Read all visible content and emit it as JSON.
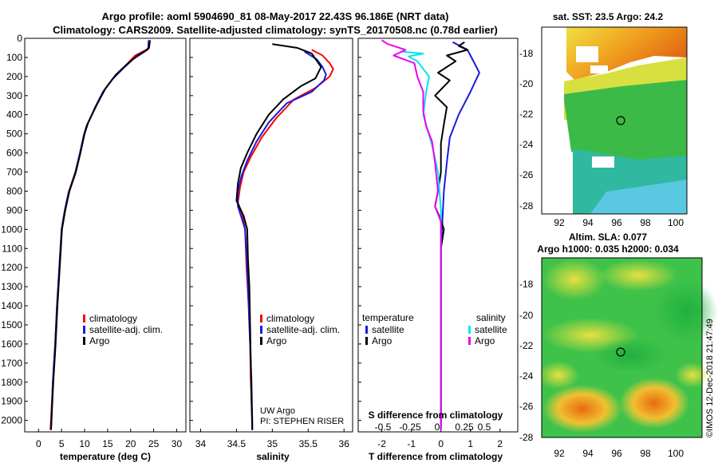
{
  "header": {
    "line1": "Argo profile: aoml 5904690_81 08-May-2017 22.43S 96.186E (NRT data)",
    "line2": "Climatology: CARS2009. Satellite-adjusted climatology: synTS_20170508.nc (0.78d earlier)"
  },
  "colors": {
    "climatology": "#ff0000",
    "satellite": "#1a1adc",
    "argo": "#000000",
    "sat_salinity": "#00e5ee",
    "argo_salinity": "#ee00ee"
  },
  "depth_axis": {
    "ticks": [
      0,
      100,
      200,
      300,
      400,
      500,
      600,
      700,
      800,
      900,
      1000,
      1100,
      1200,
      1300,
      1400,
      1500,
      1600,
      1700,
      1800,
      1900,
      2000
    ],
    "range": [
      0,
      2060
    ]
  },
  "chart_data": [
    {
      "type": "line",
      "id": "temperature",
      "xlabel": "temperature (deg C)",
      "xticks": [
        0,
        5,
        10,
        15,
        20,
        25,
        30
      ],
      "xlim": [
        -3,
        32
      ],
      "legend": [
        "climatology",
        "satellite-adj. clim.",
        "Argo"
      ],
      "series": [
        {
          "name": "climatology",
          "color": "#ff0000",
          "points": [
            [
              24.0,
              10
            ],
            [
              23.9,
              50
            ],
            [
              23.4,
              60
            ],
            [
              21.0,
              90
            ],
            [
              18.6,
              150
            ],
            [
              16.5,
              200
            ],
            [
              14.3,
              270
            ],
            [
              12.6,
              350
            ],
            [
              11.6,
              400
            ],
            [
              10.6,
              450
            ],
            [
              9.9,
              500
            ],
            [
              9.0,
              600
            ],
            [
              8.0,
              700
            ],
            [
              6.6,
              800
            ],
            [
              5.7,
              900
            ],
            [
              5.0,
              1000
            ],
            [
              4.5,
              1200
            ],
            [
              4.0,
              1400
            ],
            [
              3.6,
              1600
            ],
            [
              3.1,
              1800
            ],
            [
              2.7,
              2000
            ],
            [
              2.6,
              2050
            ]
          ]
        },
        {
          "name": "satellite-adj. clim.",
          "color": "#1a1adc",
          "points": [
            [
              23.9,
              10
            ],
            [
              23.8,
              55
            ],
            [
              23.0,
              70
            ],
            [
              20.5,
              110
            ],
            [
              18.3,
              160
            ],
            [
              16.2,
              210
            ],
            [
              14.0,
              280
            ],
            [
              12.3,
              360
            ],
            [
              11.4,
              410
            ],
            [
              10.4,
              460
            ],
            [
              9.8,
              510
            ],
            [
              8.9,
              610
            ],
            [
              7.9,
              710
            ],
            [
              6.5,
              810
            ],
            [
              5.7,
              900
            ],
            [
              5.0,
              1000
            ],
            [
              4.5,
              1200
            ],
            [
              4.0,
              1400
            ],
            [
              3.6,
              1600
            ],
            [
              3.1,
              1800
            ],
            [
              2.8,
              2000
            ],
            [
              2.7,
              2050
            ]
          ]
        },
        {
          "name": "Argo",
          "color": "#000000",
          "points": [
            [
              24.2,
              10
            ],
            [
              24.0,
              50
            ],
            [
              23.6,
              60
            ],
            [
              21.5,
              90
            ],
            [
              19.0,
              140
            ],
            [
              16.8,
              190
            ],
            [
              14.6,
              260
            ],
            [
              12.8,
              340
            ],
            [
              11.8,
              390
            ],
            [
              10.8,
              440
            ],
            [
              10.0,
              500
            ],
            [
              9.1,
              600
            ],
            [
              8.1,
              700
            ],
            [
              6.7,
              800
            ],
            [
              5.8,
              900
            ],
            [
              5.1,
              1000
            ],
            [
              4.6,
              1200
            ],
            [
              4.1,
              1400
            ],
            [
              3.7,
              1600
            ],
            [
              3.2,
              1800
            ],
            [
              2.8,
              2000
            ],
            [
              2.7,
              2050
            ]
          ]
        }
      ]
    },
    {
      "type": "line",
      "id": "salinity",
      "xlabel": "salinity",
      "xticks": [
        34,
        34.5,
        35,
        35.5,
        36
      ],
      "xtick_labels": [
        "34",
        "34.5",
        "35",
        "35.5",
        "36"
      ],
      "xlim": [
        33.85,
        36.12
      ],
      "legend": [
        "climatology",
        "satellite-adj. clim.",
        "Argo"
      ],
      "annotation": [
        "UW Argo",
        "PI: STEPHEN RISER"
      ],
      "series": [
        {
          "name": "climatology",
          "color": "#ff0000",
          "points": [
            [
              35.55,
              60
            ],
            [
              35.7,
              90
            ],
            [
              35.8,
              130
            ],
            [
              35.85,
              160
            ],
            [
              35.8,
              200
            ],
            [
              35.6,
              260
            ],
            [
              35.3,
              320
            ],
            [
              35.05,
              420
            ],
            [
              34.85,
              520
            ],
            [
              34.7,
              620
            ],
            [
              34.6,
              700
            ],
            [
              34.55,
              780
            ],
            [
              34.52,
              860
            ],
            [
              34.58,
              920
            ],
            [
              34.62,
              1000
            ],
            [
              34.64,
              1200
            ],
            [
              34.67,
              1400
            ],
            [
              34.69,
              1600
            ],
            [
              34.7,
              1800
            ],
            [
              34.72,
              2000
            ],
            [
              34.72,
              2050
            ]
          ]
        },
        {
          "name": "satellite-adj. clim.",
          "color": "#1a1adc",
          "points": [
            [
              35.45,
              70
            ],
            [
              35.62,
              110
            ],
            [
              35.7,
              150
            ],
            [
              35.75,
              190
            ],
            [
              35.72,
              220
            ],
            [
              35.55,
              280
            ],
            [
              35.2,
              340
            ],
            [
              34.95,
              440
            ],
            [
              34.78,
              540
            ],
            [
              34.65,
              640
            ],
            [
              34.57,
              720
            ],
            [
              34.52,
              800
            ],
            [
              34.52,
              880
            ],
            [
              34.58,
              950
            ],
            [
              34.62,
              1000
            ],
            [
              34.65,
              1200
            ],
            [
              34.67,
              1400
            ],
            [
              34.69,
              1600
            ],
            [
              34.71,
              1800
            ],
            [
              34.72,
              2000
            ],
            [
              34.72,
              2050
            ]
          ]
        },
        {
          "name": "Argo",
          "color": "#000000",
          "points": [
            [
              35.0,
              30
            ],
            [
              35.35,
              50
            ],
            [
              35.55,
              80
            ],
            [
              35.68,
              150
            ],
            [
              35.6,
              210
            ],
            [
              35.4,
              250
            ],
            [
              35.15,
              320
            ],
            [
              34.95,
              400
            ],
            [
              34.78,
              500
            ],
            [
              34.65,
              600
            ],
            [
              34.56,
              680
            ],
            [
              34.52,
              760
            ],
            [
              34.5,
              850
            ],
            [
              34.6,
              930
            ],
            [
              34.65,
              1000
            ],
            [
              34.66,
              1150
            ],
            [
              34.68,
              1300
            ],
            [
              34.69,
              1500
            ],
            [
              34.7,
              1700
            ],
            [
              34.71,
              1900
            ],
            [
              34.72,
              2050
            ]
          ]
        }
      ]
    },
    {
      "type": "line",
      "id": "differences",
      "xlabel": "T difference from climatology",
      "xticks": [
        -2,
        -1,
        0,
        1,
        2
      ],
      "xlim": [
        -2.8,
        2.6
      ],
      "secondary_label": "S difference from climatology",
      "secondary_ticks": [
        "-0.5",
        "-0.25",
        "0",
        "0.25",
        "0.5"
      ],
      "legend_left_title": "temperature",
      "legend_right_title": "salinity",
      "legend_left": [
        "satellite",
        "Argo"
      ],
      "legend_right": [
        "satellite",
        "Argo"
      ],
      "series": [
        {
          "name": "T satellite",
          "color": "#1a1adc",
          "points": [
            [
              0.4,
              20
            ],
            [
              0.9,
              60
            ],
            [
              1.0,
              90
            ],
            [
              1.3,
              180
            ],
            [
              1.0,
              280
            ],
            [
              0.6,
              400
            ],
            [
              0.3,
              520
            ],
            [
              0.2,
              650
            ],
            [
              0.1,
              800
            ],
            [
              0.05,
              950
            ],
            [
              0.0,
              1100
            ],
            [
              0.0,
              1400
            ],
            [
              0.0,
              1700
            ],
            [
              0.0,
              2050
            ]
          ]
        },
        {
          "name": "T Argo",
          "color": "#000000",
          "points": [
            [
              0.8,
              20
            ],
            [
              0.6,
              40
            ],
            [
              0.9,
              60
            ],
            [
              0.2,
              90
            ],
            [
              0.5,
              120
            ],
            [
              -0.1,
              180
            ],
            [
              0.3,
              220
            ],
            [
              -0.2,
              300
            ],
            [
              0.2,
              360
            ],
            [
              0.1,
              450
            ],
            [
              0.0,
              550
            ],
            [
              0.0,
              700
            ],
            [
              -0.1,
              800
            ],
            [
              -0.2,
              880
            ],
            [
              0.0,
              950
            ],
            [
              0.1,
              1000
            ],
            [
              0.0,
              1100
            ],
            [
              0.0,
              1300
            ],
            [
              0.0,
              1600
            ],
            [
              0.0,
              2050
            ]
          ]
        },
        {
          "name": "S satellite",
          "color": "#00e5ee",
          "points": [
            [
              -1.3,
              70
            ],
            [
              -0.6,
              80
            ],
            [
              -1.1,
              95
            ],
            [
              -0.8,
              120
            ],
            [
              -0.4,
              200
            ],
            [
              -0.5,
              280
            ],
            [
              -0.6,
              400
            ],
            [
              -0.3,
              560
            ],
            [
              -0.1,
              700
            ],
            [
              0.0,
              900
            ],
            [
              0.0,
              1100
            ],
            [
              0.0,
              1300
            ],
            [
              0.0,
              2050
            ]
          ]
        },
        {
          "name": "S Argo",
          "color": "#ee00ee",
          "points": [
            [
              -2.0,
              10
            ],
            [
              -1.8,
              30
            ],
            [
              -1.2,
              60
            ],
            [
              -1.6,
              90
            ],
            [
              -0.9,
              130
            ],
            [
              -0.8,
              200
            ],
            [
              -0.6,
              280
            ],
            [
              -0.6,
              380
            ],
            [
              -0.5,
              460
            ],
            [
              -0.3,
              540
            ],
            [
              -0.2,
              650
            ],
            [
              -0.1,
              800
            ],
            [
              -0.2,
              880
            ],
            [
              0.0,
              960
            ],
            [
              0.0,
              1100
            ],
            [
              0.0,
              1500
            ],
            [
              0.0,
              2050
            ]
          ]
        }
      ]
    }
  ],
  "maps": {
    "sst": {
      "title": "sat. SST: 23.5 Argo: 24.2",
      "lat_ticks": [
        "-18",
        "-20",
        "-22",
        "-24",
        "-26",
        "-28"
      ],
      "lon_ticks": [
        "92",
        "94",
        "96",
        "98",
        "100"
      ]
    },
    "sla": {
      "title1": "Altim. SLA: 0.077",
      "title2": "Argo h1000: 0.035 h2000: 0.034",
      "lat_ticks": [
        "-18",
        "-20",
        "-22",
        "-24",
        "-26",
        "-28"
      ],
      "lon_ticks": [
        "92",
        "94",
        "96",
        "98",
        "100"
      ]
    },
    "argo_position": {
      "lat": -22.43,
      "lon": 96.186
    }
  },
  "credit": "©IMOS 12-Dec-2018 21:47:49"
}
